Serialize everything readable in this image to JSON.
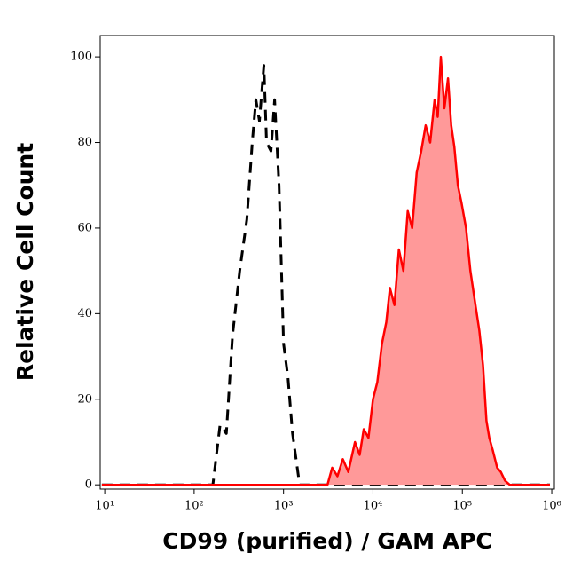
{
  "chart_data": {
    "type": "histogram-overlay",
    "xlabel": "CD99 (purified) / GAM APC",
    "ylabel": "Relative Cell Count",
    "xscale": "log",
    "xlim": [
      8.9,
      1070000
    ],
    "ylim": [
      -1,
      105
    ],
    "xticks": [
      {
        "value": 10,
        "label": "10¹"
      },
      {
        "value": 100,
        "label": "10²"
      },
      {
        "value": 1000,
        "label": "10³"
      },
      {
        "value": 10000,
        "label": "10⁴"
      },
      {
        "value": 100000,
        "label": "10⁵"
      },
      {
        "value": 1000000,
        "label": "10⁶"
      }
    ],
    "yticks": [
      0,
      20,
      40,
      60,
      80,
      100
    ],
    "series": [
      {
        "color": "#000000",
        "style": "dashed",
        "fill": false,
        "x": [
          9.3,
          162,
          195,
          229,
          269,
          324,
          389,
          447,
          490,
          537,
          603,
          646,
          724,
          794,
          891,
          1000,
          1122,
          1259,
          1514,
          955000
        ],
        "values": [
          0,
          0,
          14,
          12,
          35,
          50,
          62,
          80,
          90,
          85,
          98,
          80,
          78,
          90,
          70,
          33,
          25,
          12,
          0,
          0
        ]
      },
      {
        "color": "#ff0000",
        "style": "solid",
        "fill": true,
        "fill_color": "#ff9999",
        "x": [
          9.3,
          3100,
          3500,
          4000,
          4600,
          5300,
          6300,
          7100,
          7900,
          8900,
          10000,
          11200,
          12600,
          14100,
          15500,
          17400,
          19500,
          21900,
          24500,
          27500,
          30900,
          34700,
          38900,
          43700,
          49000,
          53000,
          57500,
          63000,
          69200,
          75000,
          81300,
          89000,
          97700,
          110000,
          123000,
          138000,
          155000,
          170000,
          186000,
          200000,
          219000,
          245000,
          269000,
          300000,
          339000,
          955000
        ],
        "values": [
          0,
          0,
          4,
          2,
          6,
          3,
          10,
          7,
          13,
          11,
          20,
          24,
          33,
          38,
          46,
          42,
          55,
          50,
          64,
          60,
          73,
          78,
          84,
          80,
          90,
          86,
          100,
          88,
          95,
          84,
          79,
          70,
          66,
          60,
          50,
          43,
          36,
          28,
          15,
          11,
          8,
          4,
          3,
          1,
          0,
          0
        ]
      }
    ]
  }
}
